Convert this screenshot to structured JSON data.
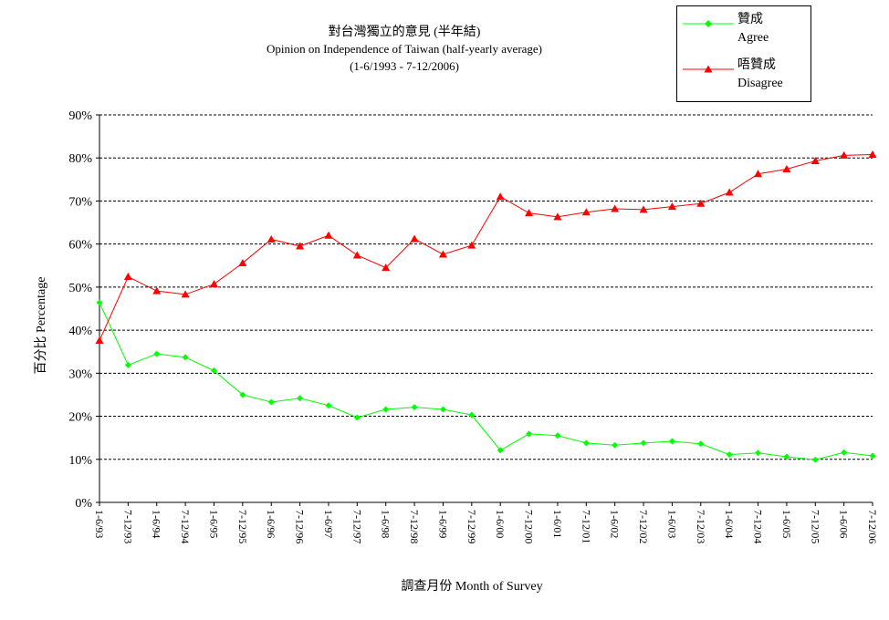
{
  "chart_data": {
    "type": "line",
    "title": "對台灣獨立的意見 (半年結)",
    "subtitle": "Opinion on Independence of Taiwan  (half-yearly average)",
    "subtitle2": "(1-6/1993 - 7-12/2006)",
    "xlabel": "調查月份 Month of Survey",
    "ylabel": "百分比 Percentage",
    "ylim": [
      0,
      90
    ],
    "yticks": [
      "0%",
      "10%",
      "20%",
      "30%",
      "40%",
      "50%",
      "60%",
      "70%",
      "80%",
      "90%"
    ],
    "grid": true,
    "legend_position": "top-right",
    "categories": [
      "1-6/93",
      "7-12/93",
      "1-6/94",
      "7-12/94",
      "1-6/95",
      "7-12/95",
      "1-6/96",
      "7-12/96",
      "1-6/97",
      "7-12/97",
      "1-6/98",
      "7-12/98",
      "1-6/99",
      "7-12/99",
      "1-6/00",
      "7-12/00",
      "1-6/01",
      "7-12/01",
      "1-6/02",
      "7-12/02",
      "1-6/03",
      "7-12/03",
      "1-6/04",
      "7-12/04",
      "1-6/05",
      "7-12/05",
      "1-6/06",
      "7-12/06"
    ],
    "series": [
      {
        "name": "贊成",
        "name_en": "Agree",
        "color": "#00ff00",
        "marker": "diamond",
        "values": [
          46.4,
          31.9,
          34.5,
          33.7,
          30.6,
          25.0,
          23.3,
          24.2,
          22.5,
          19.7,
          21.6,
          22.1,
          21.6,
          20.3,
          12.1,
          15.9,
          15.5,
          13.8,
          13.3,
          13.8,
          14.2,
          13.6,
          11.1,
          11.5,
          10.6,
          9.9,
          11.6,
          10.8
        ]
      },
      {
        "name": "唔贊成",
        "name_en": "Disagree",
        "color": "#ff0000",
        "marker": "triangle",
        "values": [
          37.6,
          52.4,
          49.1,
          48.3,
          50.7,
          55.6,
          61.1,
          59.5,
          62.0,
          57.4,
          54.5,
          61.2,
          57.6,
          59.7,
          71.0,
          67.2,
          66.3,
          67.4,
          68.2,
          68.0,
          68.7,
          69.4,
          72.0,
          76.3,
          77.4,
          79.3,
          80.6,
          80.8
        ]
      }
    ]
  }
}
